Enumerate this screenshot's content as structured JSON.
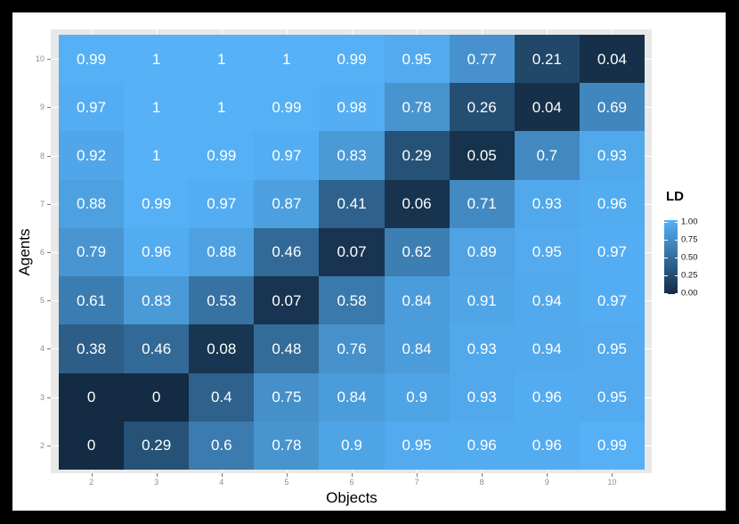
{
  "chart_data": {
    "type": "heatmap",
    "title": "",
    "xlabel": "Objects",
    "ylabel": "Agents",
    "x_categories": [
      2,
      3,
      4,
      5,
      6,
      7,
      8,
      9,
      10
    ],
    "y_categories_top_to_bottom": [
      10,
      9,
      8,
      7,
      6,
      5,
      4,
      3,
      2
    ],
    "series": [
      {
        "agent": 10,
        "values": [
          0.99,
          1,
          1,
          1,
          0.99,
          0.95,
          0.77,
          0.21,
          0.04
        ]
      },
      {
        "agent": 9,
        "values": [
          0.97,
          1,
          1,
          0.99,
          0.98,
          0.78,
          0.26,
          0.04,
          0.69
        ]
      },
      {
        "agent": 8,
        "values": [
          0.92,
          1,
          0.99,
          0.97,
          0.83,
          0.29,
          0.05,
          0.7,
          0.93
        ]
      },
      {
        "agent": 7,
        "values": [
          0.88,
          0.99,
          0.97,
          0.87,
          0.41,
          0.06,
          0.71,
          0.93,
          0.96
        ]
      },
      {
        "agent": 6,
        "values": [
          0.79,
          0.96,
          0.88,
          0.46,
          0.07,
          0.62,
          0.89,
          0.95,
          0.97
        ]
      },
      {
        "agent": 5,
        "values": [
          0.61,
          0.83,
          0.53,
          0.07,
          0.58,
          0.84,
          0.91,
          0.94,
          0.97
        ]
      },
      {
        "agent": 4,
        "values": [
          0.38,
          0.46,
          0.08,
          0.48,
          0.76,
          0.84,
          0.93,
          0.94,
          0.95
        ]
      },
      {
        "agent": 3,
        "values": [
          0,
          0,
          0.4,
          0.75,
          0.84,
          0.9,
          0.93,
          0.96,
          0.95
        ]
      },
      {
        "agent": 2,
        "values": [
          0,
          0.29,
          0.6,
          0.78,
          0.9,
          0.95,
          0.96,
          0.96,
          0.99
        ]
      }
    ],
    "value_range": [
      0,
      1
    ],
    "legend": {
      "title": "LD",
      "tick_values": [
        1,
        0.75,
        0.5,
        0.25,
        0
      ],
      "tick_labels": [
        "1.00",
        "0.75",
        "0.50",
        "0.25",
        "0.00"
      ],
      "position": "right"
    },
    "colors": {
      "low": "#132B43",
      "high": "#56B1F7",
      "panel_bg": "#E8E8E8",
      "cell_text": "#FFFFFF",
      "axis_tick_text": "#8E8E8E",
      "axis_title_text": "#000000",
      "grid": "#FFFFFF",
      "frame_bg": "#000000",
      "canvas_bg": "#FFFFFF"
    },
    "grid": true
  }
}
